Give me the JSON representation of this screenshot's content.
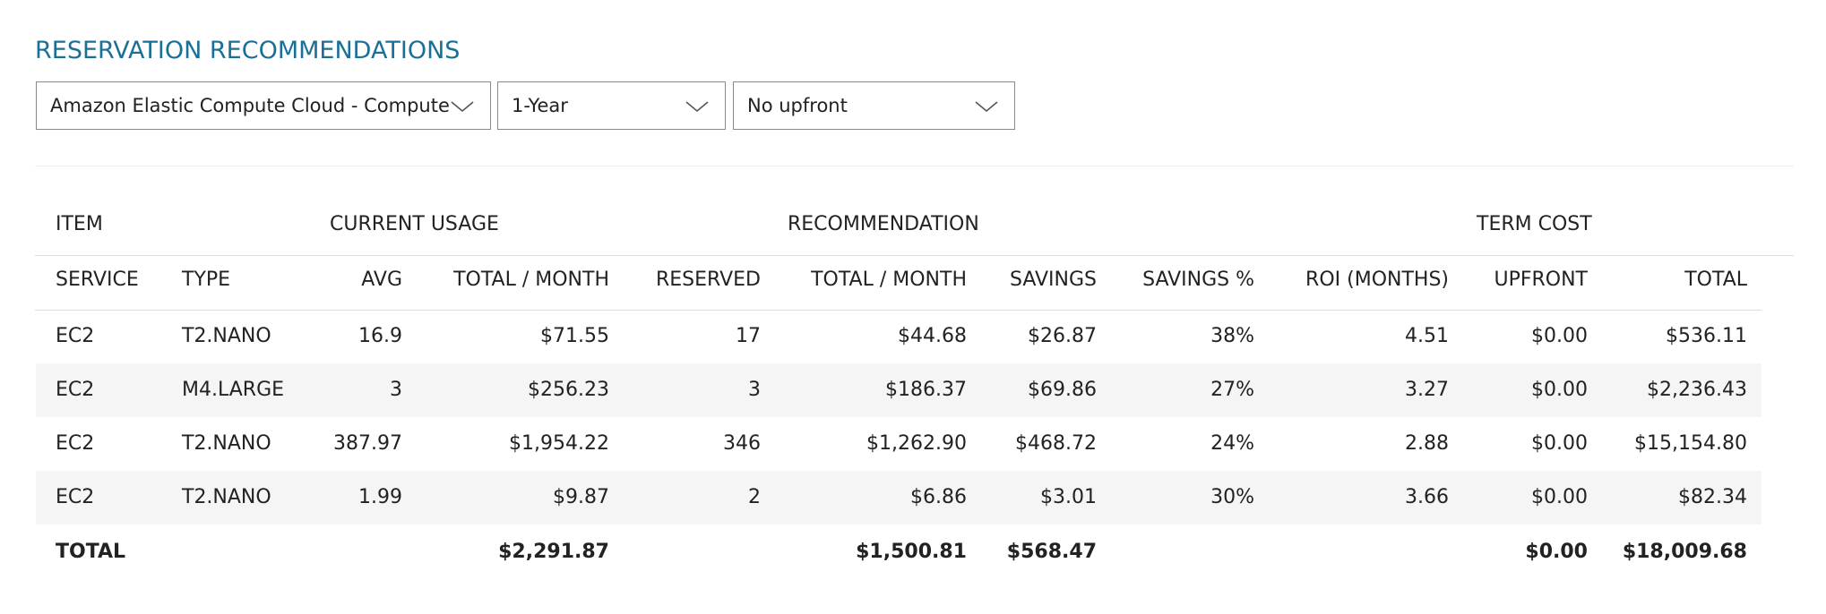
{
  "header": {
    "title": "RESERVATION RECOMMENDATIONS"
  },
  "filters": [
    "Amazon Elastic Compute Cloud - Compute",
    "1-Year",
    "No upfront"
  ],
  "table": {
    "groups": [
      "ITEM",
      "CURRENT USAGE",
      "RECOMMENDATION",
      "TERM COST"
    ],
    "columns": [
      "SERVICE",
      "TYPE",
      "AVG",
      "TOTAL / MONTH",
      "RESERVED",
      "TOTAL / MONTH",
      "SAVINGS",
      "SAVINGS %",
      "ROI (MONTHS)",
      "UPFRONT",
      "TOTAL"
    ],
    "rows": [
      [
        "EC2",
        "T2.NANO",
        "16.9",
        "$71.55",
        "17",
        "$44.68",
        "$26.87",
        "38%",
        "4.51",
        "$0.00",
        "$536.11"
      ],
      [
        "EC2",
        "M4.LARGE",
        "3",
        "$256.23",
        "3",
        "$186.37",
        "$69.86",
        "27%",
        "3.27",
        "$0.00",
        "$2,236.43"
      ],
      [
        "EC2",
        "T2.NANO",
        "387.97",
        "$1,954.22",
        "346",
        "$1,262.90",
        "$468.72",
        "24%",
        "2.88",
        "$0.00",
        "$15,154.80"
      ],
      [
        "EC2",
        "T2.NANO",
        "1.99",
        "$9.87",
        "2",
        "$6.86",
        "$3.01",
        "30%",
        "3.66",
        "$0.00",
        "$82.34"
      ]
    ],
    "total": {
      "label": "TOTAL",
      "current_total_month": "$2,291.87",
      "recommended_total_month": "$1,500.81",
      "savings": "$568.47",
      "upfront": "$0.00",
      "total": "$18,009.68"
    }
  }
}
